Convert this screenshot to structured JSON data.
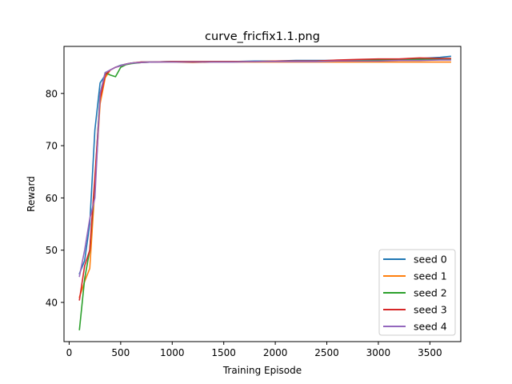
{
  "chart_data": {
    "type": "line",
    "title": "curve_fricfix1.1.png",
    "xlabel": "Training Episode",
    "ylabel": "Reward",
    "xlim": [
      -50,
      3800
    ],
    "ylim": [
      32.5,
      89
    ],
    "xticks": [
      0,
      500,
      1000,
      1500,
      2000,
      2500,
      3000,
      3500
    ],
    "yticks": [
      40,
      50,
      60,
      70,
      80
    ],
    "grid": false,
    "legend": {
      "placement": "lower-right"
    },
    "series": [
      {
        "name": "seed 0",
        "color": "#1f77b4",
        "x": [
          100,
          150,
          200,
          250,
          300,
          350,
          400,
          450,
          500,
          550,
          600,
          700,
          800,
          1000,
          1200,
          1400,
          1600,
          1800,
          2000,
          2200,
          2400,
          2600,
          2800,
          3000,
          3200,
          3400,
          3600,
          3700
        ],
        "y": [
          45.5,
          48,
          55,
          73,
          82,
          83.5,
          84.5,
          85,
          85.4,
          85.6,
          85.8,
          86,
          86,
          86.1,
          86,
          86.1,
          86.1,
          86.2,
          86.2,
          86.3,
          86.3,
          86.3,
          86.4,
          86.4,
          86.5,
          86.7,
          86.9,
          87.1
        ]
      },
      {
        "name": "seed 1",
        "color": "#ff7f0e",
        "x": [
          100,
          150,
          200,
          250,
          300,
          350,
          400,
          450,
          500,
          550,
          600,
          700,
          800,
          1000,
          1200,
          1400,
          1600,
          1800,
          2000,
          2200,
          2400,
          2600,
          2800,
          3000,
          3200,
          3400,
          3600,
          3700
        ],
        "y": [
          41,
          44,
          46.5,
          62,
          78,
          83,
          84.5,
          85,
          85.3,
          85.6,
          85.8,
          85.9,
          86,
          86,
          85.9,
          86,
          86,
          86,
          86,
          86,
          86,
          86,
          86,
          86,
          86,
          86,
          86,
          86
        ]
      },
      {
        "name": "seed 2",
        "color": "#2ca02c",
        "x": [
          100,
          150,
          200,
          250,
          300,
          350,
          400,
          450,
          500,
          550,
          600,
          700,
          800,
          1000,
          1200,
          1400,
          1600,
          1800,
          2000,
          2200,
          2400,
          2600,
          2800,
          3000,
          3200,
          3400,
          3600,
          3700
        ],
        "y": [
          34.8,
          44.5,
          50,
          63,
          80,
          84,
          83.5,
          83.2,
          85,
          85.5,
          85.7,
          85.9,
          86,
          86.1,
          86.1,
          86.1,
          86.1,
          86.1,
          86.2,
          86.2,
          86.2,
          86.3,
          86.4,
          86.4,
          86.5,
          86.5,
          86.6,
          86.6
        ]
      },
      {
        "name": "seed 3",
        "color": "#d62728",
        "x": [
          100,
          150,
          200,
          250,
          300,
          350,
          400,
          450,
          500,
          550,
          600,
          700,
          800,
          1000,
          1200,
          1400,
          1600,
          1800,
          2000,
          2200,
          2400,
          2600,
          2800,
          3000,
          3200,
          3400,
          3600,
          3700
        ],
        "y": [
          40.5,
          47,
          50,
          64,
          79,
          83.5,
          84.5,
          85,
          85.3,
          85.6,
          85.8,
          86,
          86,
          86.1,
          86.1,
          86.1,
          86.1,
          86.1,
          86.2,
          86.2,
          86.2,
          86.4,
          86.5,
          86.6,
          86.6,
          86.8,
          86.7,
          86.7
        ]
      },
      {
        "name": "seed 4",
        "color": "#9467bd",
        "x": [
          100,
          150,
          200,
          250,
          300,
          350,
          400,
          450,
          500,
          550,
          600,
          700,
          800,
          1000,
          1200,
          1400,
          1600,
          1800,
          2000,
          2200,
          2400,
          2600,
          2800,
          3000,
          3200,
          3400,
          3600,
          3700
        ],
        "y": [
          45,
          50,
          56,
          60,
          80,
          84,
          84.5,
          85,
          85.3,
          85.6,
          85.8,
          85.9,
          86,
          86,
          86,
          86,
          86,
          86.1,
          86.1,
          86.1,
          86.1,
          86.2,
          86.2,
          86.2,
          86.3,
          86.3,
          86.4,
          86.4
        ]
      }
    ]
  }
}
